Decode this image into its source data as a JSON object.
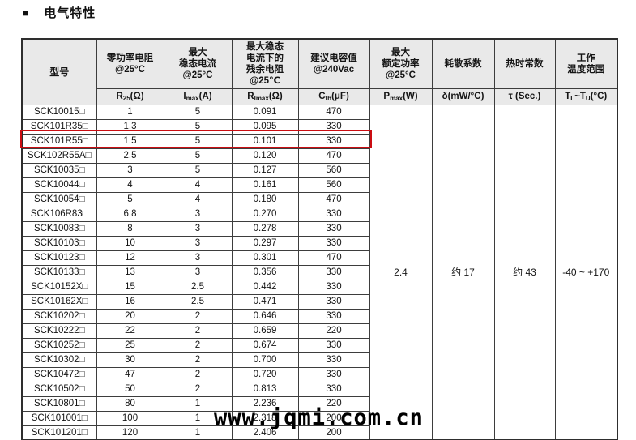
{
  "page": {
    "bullet": "■",
    "title": "电气特性"
  },
  "watermark": "www.jqmi.com.cn",
  "colors": {
    "highlight_red": "#cb0d12",
    "header_bg": "#e9e9e9",
    "border": "#3d3d3d"
  },
  "table": {
    "headers": {
      "model": "型号",
      "col_groups": [
        {
          "title_lines": [
            "零功率电阻",
            "@25°C"
          ],
          "unit": {
            "base": "R",
            "sub": "25",
            "rest": "(Ω)"
          }
        },
        {
          "title_lines": [
            "最大",
            "稳态电流",
            "@25°C"
          ],
          "unit": {
            "base": "I",
            "sub": "max",
            "rest": "(A)"
          }
        },
        {
          "title_lines": [
            "最大稳态",
            "电流下的",
            "残余电阻",
            "@25℃"
          ],
          "unit": {
            "base": "R",
            "sub": "Imax",
            "rest": "(Ω)"
          }
        },
        {
          "title_lines": [
            "建议电容值",
            "@240Vac"
          ],
          "unit": {
            "base": "C",
            "sub": "th",
            "rest": "(μF)"
          }
        },
        {
          "title_lines": [
            "最大",
            "额定功率",
            "@25°C"
          ],
          "unit": {
            "base": "P",
            "sub": "max",
            "rest": "(W)"
          }
        },
        {
          "title_lines": [
            "耗散系数"
          ],
          "unit": {
            "base": "δ",
            "sub": "",
            "rest": "(mW/°C)"
          }
        },
        {
          "title_lines": [
            "热时常数"
          ],
          "unit": {
            "base": "τ",
            "sub": "",
            "rest": " (Sec.)"
          }
        },
        {
          "title_lines": [
            "工作",
            "温度范围"
          ],
          "unit": {
            "base": "T",
            "sub": "L",
            "rest": "~T",
            "sub2": "U",
            "rest2": "(°C)"
          }
        }
      ]
    },
    "rows": [
      {
        "model": "SCK10015□",
        "r25": "1",
        "imax": "5",
        "rimax": "0.091",
        "cth": "470"
      },
      {
        "model": "SCK101R35□",
        "r25": "1.3",
        "imax": "5",
        "rimax": "0.095",
        "cth": "330"
      },
      {
        "model": "SCK101R55□",
        "r25": "1.5",
        "imax": "5",
        "rimax": "0.101",
        "cth": "330"
      },
      {
        "model": "SCK102R55A□",
        "r25": "2.5",
        "imax": "5",
        "rimax": "0.120",
        "cth": "470"
      },
      {
        "model": "SCK10035□",
        "r25": "3",
        "imax": "5",
        "rimax": "0.127",
        "cth": "560"
      },
      {
        "model": "SCK10044□",
        "r25": "4",
        "imax": "4",
        "rimax": "0.161",
        "cth": "560"
      },
      {
        "model": "SCK10054□",
        "r25": "5",
        "imax": "4",
        "rimax": "0.180",
        "cth": "470"
      },
      {
        "model": "SCK106R83□",
        "r25": "6.8",
        "imax": "3",
        "rimax": "0.270",
        "cth": "330"
      },
      {
        "model": "SCK10083□",
        "r25": "8",
        "imax": "3",
        "rimax": "0.278",
        "cth": "330"
      },
      {
        "model": "SCK10103□",
        "r25": "10",
        "imax": "3",
        "rimax": "0.297",
        "cth": "330"
      },
      {
        "model": "SCK10123□",
        "r25": "12",
        "imax": "3",
        "rimax": "0.301",
        "cth": "470"
      },
      {
        "model": "SCK10133□",
        "r25": "13",
        "imax": "3",
        "rimax": "0.356",
        "cth": "330"
      },
      {
        "model": "SCK10152X□",
        "r25": "15",
        "imax": "2.5",
        "rimax": "0.442",
        "cth": "330"
      },
      {
        "model": "SCK10162X□",
        "r25": "16",
        "imax": "2.5",
        "rimax": "0.471",
        "cth": "330"
      },
      {
        "model": "SCK10202□",
        "r25": "20",
        "imax": "2",
        "rimax": "0.646",
        "cth": "330"
      },
      {
        "model": "SCK10222□",
        "r25": "22",
        "imax": "2",
        "rimax": "0.659",
        "cth": "220"
      },
      {
        "model": "SCK10252□",
        "r25": "25",
        "imax": "2",
        "rimax": "0.674",
        "cth": "330"
      },
      {
        "model": "SCK10302□",
        "r25": "30",
        "imax": "2",
        "rimax": "0.700",
        "cth": "330"
      },
      {
        "model": "SCK10472□",
        "r25": "47",
        "imax": "2",
        "rimax": "0.720",
        "cth": "330"
      },
      {
        "model": "SCK10502□",
        "r25": "50",
        "imax": "2",
        "rimax": "0.813",
        "cth": "330"
      },
      {
        "model": "SCK10801□",
        "r25": "80",
        "imax": "1",
        "rimax": "2.236",
        "cth": "220"
      },
      {
        "model": "SCK101001□",
        "r25": "100",
        "imax": "1",
        "rimax": "2.318",
        "cth": "200"
      },
      {
        "model": "SCK101201□",
        "r25": "120",
        "imax": "1",
        "rimax": "2.406",
        "cth": "200"
      }
    ],
    "highlighted_model": "SCK101R55□",
    "merged": {
      "pmax": "2.4",
      "delta": "约 17",
      "tau": "约 43",
      "temp_range": "-40 ~ +170"
    }
  }
}
